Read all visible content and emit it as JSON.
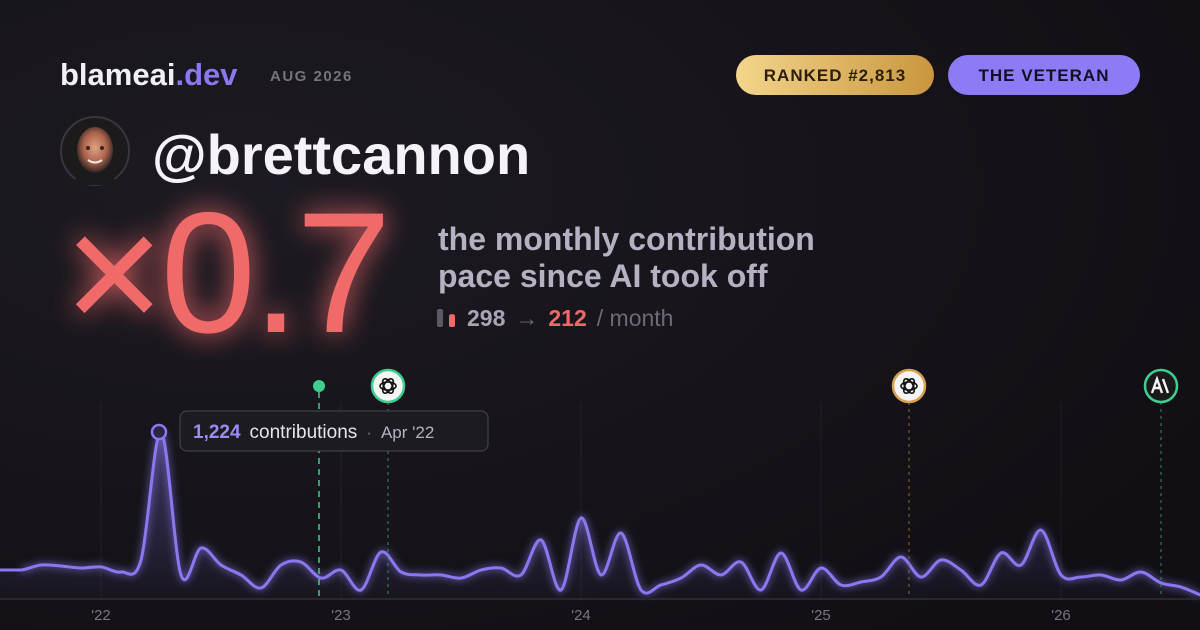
{
  "header": {
    "brand": "blameai",
    "brand_suffix": ".dev",
    "date": "AUG 2026",
    "rank_badge": "RANKED #2,813",
    "title_badge": "THE VETERAN"
  },
  "profile": {
    "handle": "@brettcannon"
  },
  "headline": {
    "multiplier": "×0.7",
    "description": [
      "the monthly contribution",
      "pace since AI took off"
    ],
    "before": 298,
    "arrow": "→",
    "after": 212,
    "unit": "/ month"
  },
  "chart_data": {
    "type": "line",
    "color": "#8b78f0",
    "values": [
      206,
      243,
      236,
      221,
      229,
      192,
      280,
      1224,
      170,
      369,
      243,
      170,
      74,
      243,
      265,
      147,
      206,
      59,
      339,
      192,
      170,
      170,
      147,
      206,
      221,
      170,
      428,
      59,
      590,
      170,
      479,
      59,
      96,
      147,
      243,
      170,
      265,
      59,
      332,
      59,
      221,
      96,
      118,
      155,
      302,
      155,
      280,
      206,
      96,
      332,
      243,
      501,
      170,
      155,
      170,
      133,
      192,
      111,
      81,
      20
    ],
    "xticks": [
      {
        "value": 4,
        "label": "'22"
      },
      {
        "value": 16,
        "label": "'23"
      },
      {
        "value": 28,
        "label": "'24"
      },
      {
        "value": 40,
        "label": "'25"
      },
      {
        "value": 52,
        "label": "'26"
      }
    ],
    "grid": true,
    "tooltip": {
      "value": "1,224",
      "label": "contributions",
      "separator": "·",
      "date": "Apr '22"
    }
  }
}
